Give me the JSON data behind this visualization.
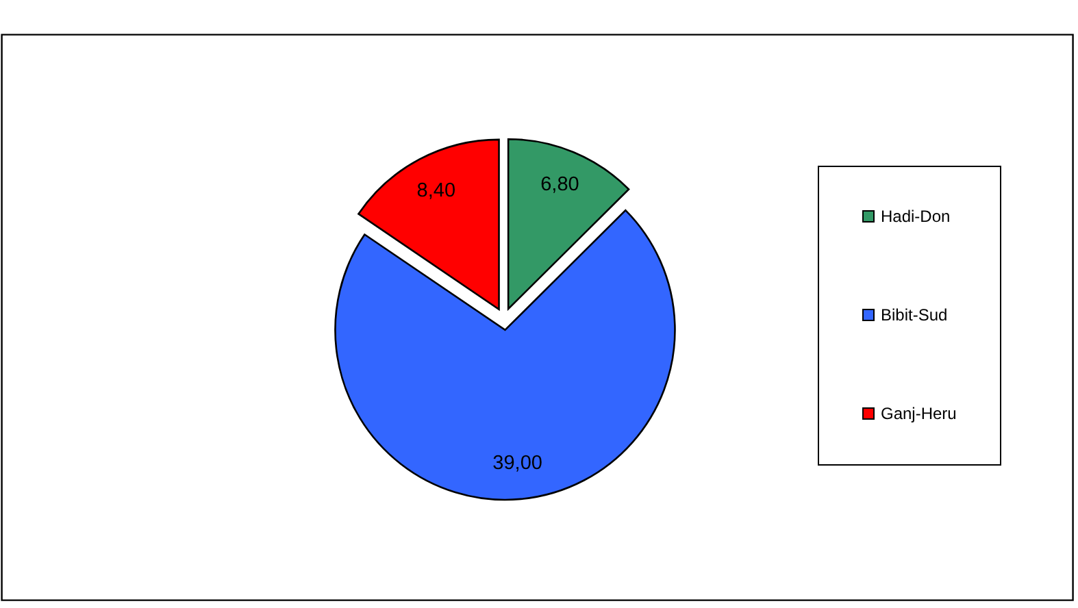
{
  "chart_data": {
    "type": "pie",
    "categories": [
      "Hadi-Don",
      "Bibit-Sud",
      "Ganj-Heru"
    ],
    "values": [
      6.8,
      39.0,
      8.4
    ],
    "colors": [
      "#339966",
      "#3366ff",
      "#ff0000"
    ],
    "value_labels": [
      "6,80",
      "39,00",
      "8,40"
    ],
    "legend": "right"
  }
}
